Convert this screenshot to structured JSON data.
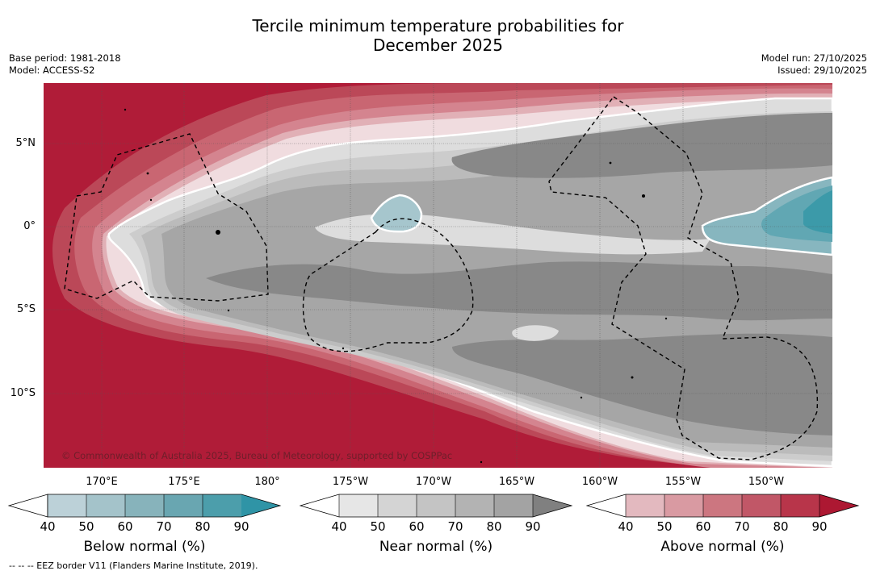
{
  "title": {
    "line1": "Tercile minimum temperature probabilities for",
    "line2": "December 2025"
  },
  "meta": {
    "base_period": "Base period: 1981-2018",
    "model": "Model: ACCESS-S2",
    "model_run": "Model run: 27/10/2025",
    "issued": "Issued: 29/10/2025"
  },
  "map": {
    "lat_labels": [
      "5°N",
      "0°",
      "5°S",
      "10°S"
    ],
    "lon_labels": [
      "170°E",
      "175°E",
      "180°",
      "175°W",
      "170°W",
      "165°W",
      "160°W",
      "155°W",
      "150°W"
    ],
    "copyright": "© Commonwealth of Australia 2025, Bureau of Meteorology, supported by COSPPac",
    "colors": {
      "above": [
        "#f0dcdf",
        "#e1b0b6",
        "#d4848f",
        "#c96672",
        "#bb4858",
        "#b01c38"
      ],
      "near": [
        "#ffffff",
        "#dddddd",
        "#cccccc",
        "#bbbbbb",
        "#a6a6a6",
        "#888888"
      ],
      "below": [
        "#e9eef0",
        "#c2d6dc",
        "#a6c6cd",
        "#87b6bf",
        "#61a7b3",
        "#3c9aa9"
      ]
    }
  },
  "colorbars": [
    {
      "title": "Below normal (%)",
      "ticks": [
        "40",
        "50",
        "60",
        "70",
        "80",
        "90"
      ],
      "colors": [
        "#bcd1d8",
        "#a4c3ca",
        "#87b3bb",
        "#69a6b1",
        "#4c9eab",
        "#2f94a6"
      ]
    },
    {
      "title": "Near normal (%)",
      "ticks": [
        "40",
        "50",
        "60",
        "70",
        "80",
        "90"
      ],
      "colors": [
        "#e6e6e6",
        "#d4d4d4",
        "#c4c4c4",
        "#b3b3b3",
        "#a3a3a3",
        "#808080"
      ]
    },
    {
      "title": "Above normal (%)",
      "ticks": [
        "40",
        "50",
        "60",
        "70",
        "80",
        "90"
      ],
      "colors": [
        "#e3b9bf",
        "#d99aa2",
        "#cc7680",
        "#c15767",
        "#b8354a",
        "#ad1832"
      ]
    }
  ],
  "footnote": "--  --  -- EEZ border V11 (Flanders Marine Institute, 2019)."
}
